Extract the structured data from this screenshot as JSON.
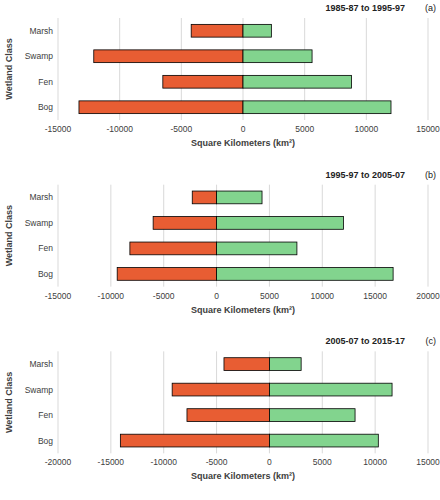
{
  "chart_data": [
    {
      "type": "bar",
      "title": "1985-87 to 1995-97",
      "annotations": [
        "(a)"
      ],
      "orientation": "horizontal",
      "grid": true,
      "x_label": "Square Kilometers (km²)",
      "y_label": "Wetland Class",
      "categories": [
        "Marsh",
        "Swamp",
        "Fen",
        "Bog"
      ],
      "series": [
        {
          "color": "#e85d33",
          "values": [
            -4200,
            -12100,
            -6500,
            -13300
          ]
        },
        {
          "color": "#82d48e",
          "values": [
            2300,
            5600,
            8800,
            12000
          ]
        }
      ],
      "xlim": [
        -15000,
        15000
      ],
      "xticks": [
        -15000,
        -10000,
        -5000,
        0,
        5000,
        10000,
        15000
      ]
    },
    {
      "type": "bar",
      "title": "1995-97 to 2005-07",
      "annotations": [
        "(b)"
      ],
      "orientation": "horizontal",
      "grid": true,
      "x_label": "Square Kilometers (km²)",
      "y_label": "Wetland Class",
      "categories": [
        "Marsh",
        "Swamp",
        "Fen",
        "Bog"
      ],
      "series": [
        {
          "color": "#e85d33",
          "values": [
            -2300,
            -6000,
            -8200,
            -9400
          ]
        },
        {
          "color": "#82d48e",
          "values": [
            4300,
            12000,
            7600,
            16700
          ]
        }
      ],
      "xlim": [
        -15000,
        20000
      ],
      "xticks": [
        -15000,
        -10000,
        -5000,
        0,
        5000,
        10000,
        15000,
        20000
      ]
    },
    {
      "type": "bar",
      "title": "2005-07 to 2015-17",
      "annotations": [
        "(c)"
      ],
      "orientation": "horizontal",
      "grid": true,
      "x_label": "Square Kilometers (km²)",
      "y_label": "Wetland Class",
      "categories": [
        "Marsh",
        "Swamp",
        "Fen",
        "Bog"
      ],
      "series": [
        {
          "color": "#e85d33",
          "values": [
            -4300,
            -9200,
            -7800,
            -14100
          ]
        },
        {
          "color": "#82d48e",
          "values": [
            3000,
            11600,
            8100,
            10300
          ]
        }
      ],
      "xlim": [
        -20000,
        15000
      ],
      "xticks": [
        -20000,
        -15000,
        -10000,
        -5000,
        0,
        5000,
        10000,
        15000
      ]
    }
  ]
}
